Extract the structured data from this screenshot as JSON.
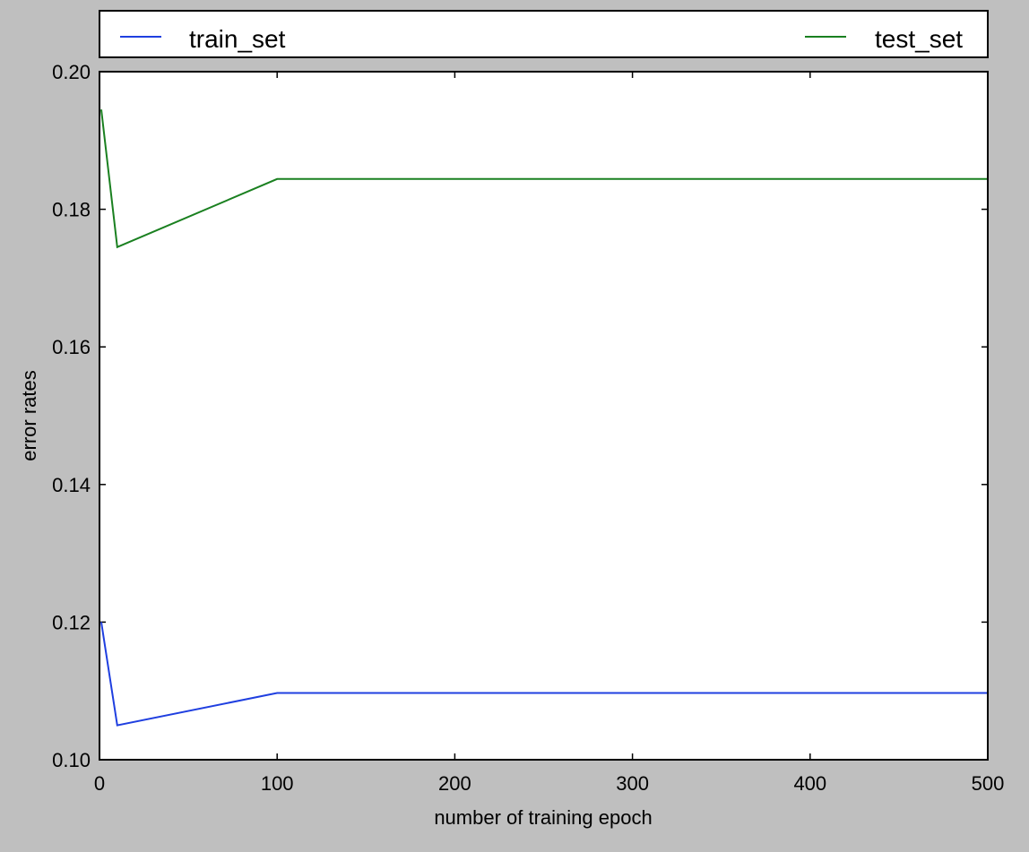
{
  "chart_data": {
    "type": "line",
    "title": "",
    "xlabel": "number of training epoch",
    "ylabel": "error rates",
    "xlim": [
      0,
      500
    ],
    "ylim": [
      0.1,
      0.2
    ],
    "xticks": [
      0,
      100,
      200,
      300,
      400,
      500
    ],
    "xtick_labels": [
      "0",
      "100",
      "200",
      "300",
      "400",
      "500"
    ],
    "yticks": [
      0.1,
      0.12,
      0.14,
      0.16,
      0.18,
      0.2
    ],
    "ytick_labels": [
      "0.10",
      "0.12",
      "0.14",
      "0.16",
      "0.18",
      "0.20"
    ],
    "grid": false,
    "legend_position": "top, outside plot, full width, 2 columns",
    "x": [
      1,
      10,
      100,
      500
    ],
    "series": [
      {
        "name": "train_set",
        "color": "#1f3fe0",
        "values": [
          0.12,
          0.105,
          0.1097,
          0.1097
        ]
      },
      {
        "name": "test_set",
        "color": "#1a8020",
        "values": [
          0.1945,
          0.1745,
          0.1844,
          0.1844
        ]
      }
    ]
  }
}
